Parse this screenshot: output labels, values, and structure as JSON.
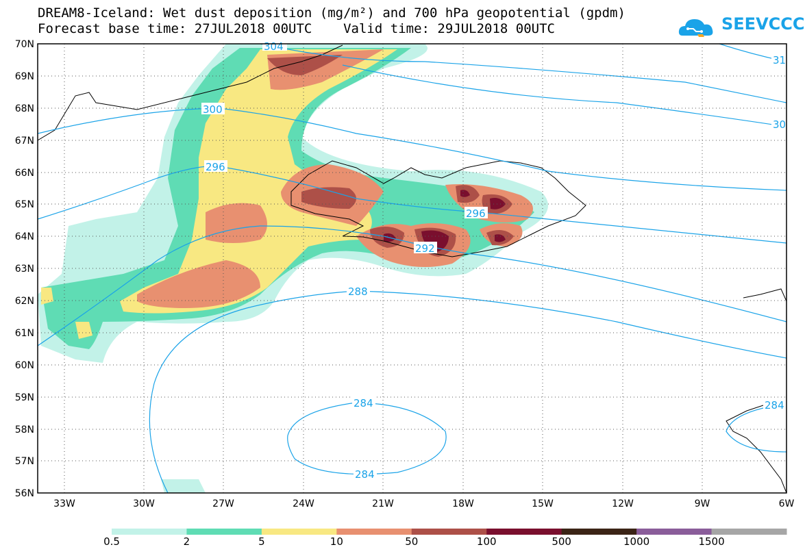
{
  "title": {
    "line1": "DREAM8-Iceland: Wet dust deposition (mg/m²) and 700 hPa geopotential (gpdm)",
    "line2": "Forecast base time: 27JUL2018 00UTC    Valid time: 29JUL2018 00UTC"
  },
  "logo": {
    "text": "SEEVCCC",
    "icon": "cloud-logo-icon",
    "color": "#1aa3e8"
  },
  "map": {
    "lon_range": [
      -34.2,
      -6.0
    ],
    "lat_range": [
      56,
      70
    ],
    "lat_ticks": [
      "70N",
      "69N",
      "68N",
      "67N",
      "66N",
      "65N",
      "64N",
      "63N",
      "62N",
      "61N",
      "60N",
      "59N",
      "58N",
      "57N",
      "56N"
    ],
    "lon_ticks": [
      "33W",
      "30W",
      "27W",
      "24W",
      "21W",
      "18W",
      "15W",
      "12W",
      "9W",
      "6W"
    ],
    "grid": true,
    "contour_color": "#1aa3e8",
    "contour_labels": [
      "304",
      "300",
      "296",
      "296",
      "292",
      "288",
      "284",
      "284",
      "284",
      "31",
      "30"
    ]
  },
  "legend": {
    "colors": [
      "#c2f2e8",
      "#5fdcb4",
      "#f8e882",
      "#e89070",
      "#ad5048",
      "#7a0f2e",
      "#3b2416",
      "#8a5d9a",
      "#a6a6a6"
    ],
    "labels": [
      "0.5",
      "2",
      "5",
      "10",
      "50",
      "100",
      "500",
      "1000",
      "1500"
    ]
  }
}
